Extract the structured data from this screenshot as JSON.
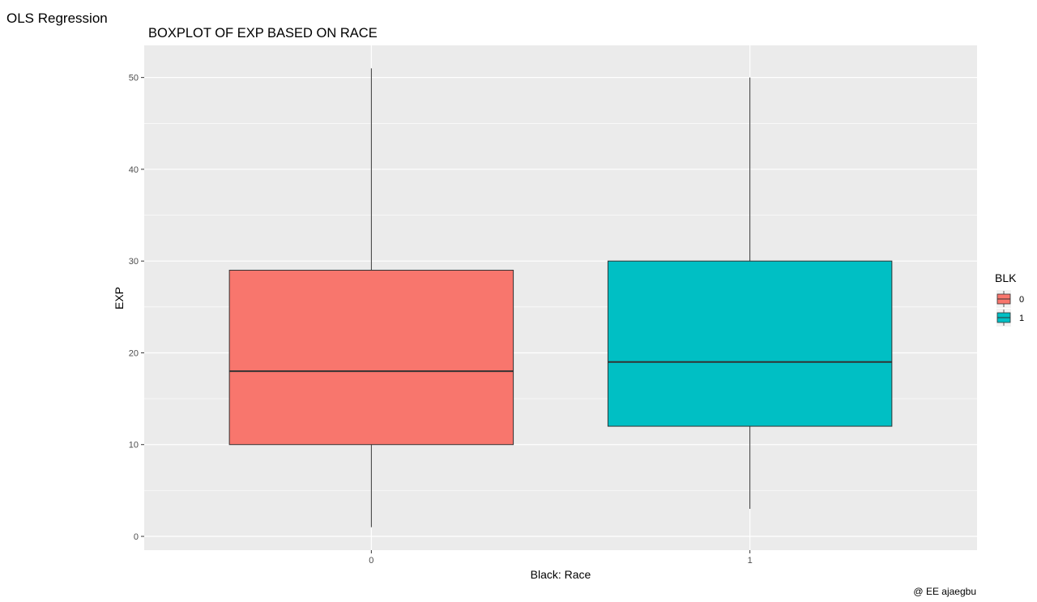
{
  "window": {
    "title": "OLS Regression"
  },
  "chart_data": {
    "type": "boxplot",
    "title": "BOXPLOT OF EXP BASED ON RACE",
    "xlabel": "Black: Race",
    "ylabel": "EXP",
    "categories": [
      "0",
      "1"
    ],
    "ylim": [
      -1.5,
      53.5
    ],
    "yticks": [
      0,
      10,
      20,
      30,
      40,
      50
    ],
    "grid": true,
    "legend": {
      "title": "BLK",
      "placement": "right",
      "entries": [
        "0",
        "1"
      ]
    },
    "series": [
      {
        "category": "0",
        "min": 1,
        "q1": 10,
        "median": 18,
        "q3": 29,
        "max": 51,
        "color": "#F8766D"
      },
      {
        "category": "1",
        "min": 3,
        "q1": 12,
        "median": 19,
        "q3": 30,
        "max": 50,
        "color": "#00BFC4"
      }
    ],
    "panel_color": "#EBEBEB",
    "grid_color": "#FFFFFF",
    "caption": "@ EE ajaegbu"
  }
}
